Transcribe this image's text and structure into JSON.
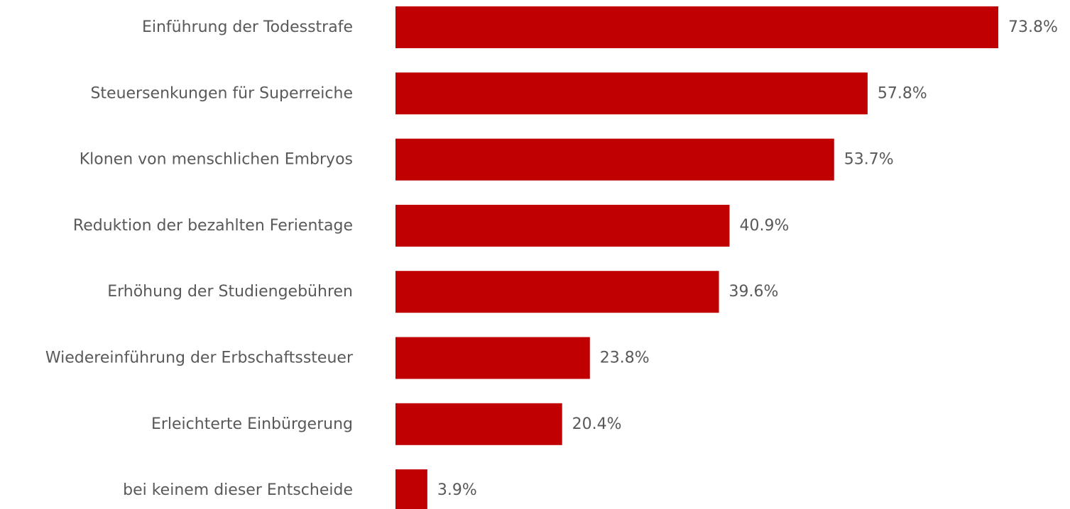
{
  "chart_data": {
    "type": "bar",
    "orientation": "horizontal",
    "categories": [
      "Einführung der Todesstrafe",
      "Steuersenkungen für Superreiche",
      "Klonen von menschlichen Embryos",
      "Reduktion der bezahlten Ferientage",
      "Erhöhung der Studiengebühren",
      "Wiedereinführung der Erbschaftssteuer",
      "Erleichterte Einbürgerung",
      "bei keinem dieser Entscheide"
    ],
    "values": [
      73.8,
      57.8,
      53.7,
      40.9,
      39.6,
      23.8,
      20.4,
      3.9
    ],
    "value_labels": [
      "73.8%",
      "57.8%",
      "53.7%",
      "40.9%",
      "39.6%",
      "23.8%",
      "20.4%",
      "3.9%"
    ],
    "xlim": [
      0,
      73.8
    ],
    "grid": false,
    "legend": "none",
    "bar_color": "#C00000",
    "text_color": "#595959"
  }
}
